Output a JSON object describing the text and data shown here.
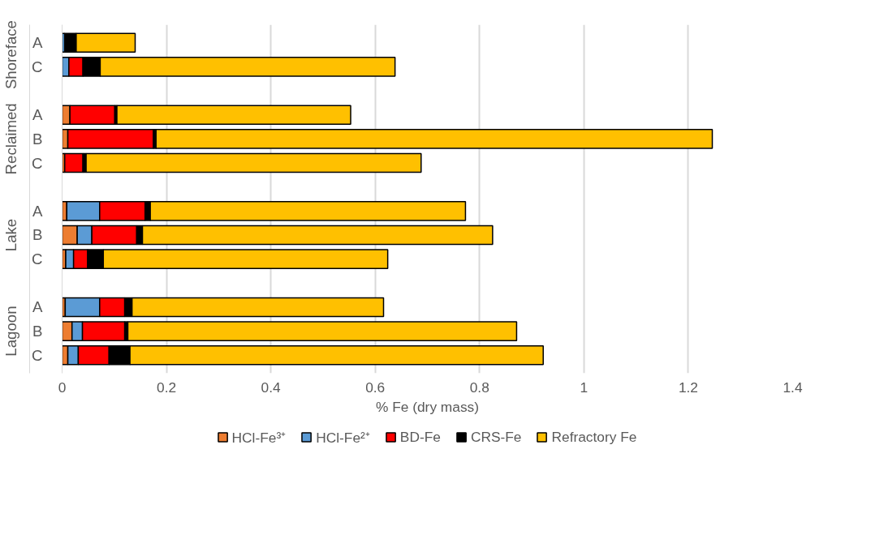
{
  "chart_data": {
    "type": "bar",
    "orientation": "horizontal",
    "stacked": true,
    "xlabel": "% Fe (dry mass)",
    "categories": [
      "A",
      "C",
      null,
      "A",
      "B",
      "C",
      null,
      "A",
      "B",
      "C",
      null,
      "A",
      "B",
      "C"
    ],
    "annotations": [
      "Shoreface",
      "Reclaimed",
      "Lake",
      "Lagoon"
    ],
    "series": [
      {
        "name": "HCl-Fe³⁺",
        "color": "#ed7d31",
        "values": [
          null,
          null,
          null,
          0.015,
          0.011,
          0.005,
          null,
          0.009,
          0.029,
          0.007,
          null,
          0.006,
          0.019,
          0.011
        ]
      },
      {
        "name": "HCl-Fe²⁺",
        "color": "#5b9bd5",
        "values": [
          0.005,
          0.013,
          null,
          null,
          null,
          null,
          null,
          0.063,
          0.028,
          0.015,
          null,
          0.066,
          0.02,
          0.02
        ]
      },
      {
        "name": "BD-Fe",
        "color": "#ff0000",
        "values": [
          null,
          0.027,
          null,
          0.086,
          0.164,
          0.035,
          null,
          0.087,
          0.086,
          0.027,
          null,
          0.048,
          0.081,
          0.059
        ]
      },
      {
        "name": "CRS-Fe",
        "color": "#000000",
        "values": [
          0.022,
          0.033,
          null,
          0.004,
          0.005,
          0.006,
          null,
          0.01,
          0.011,
          0.03,
          null,
          0.014,
          0.006,
          0.04
        ]
      },
      {
        "name": "Refractory Fe",
        "color": "#ffc000",
        "values": [
          0.113,
          0.565,
          null,
          0.448,
          1.066,
          0.642,
          null,
          0.604,
          0.671,
          0.545,
          null,
          0.482,
          0.745,
          0.792
        ]
      }
    ],
    "xlim": [
      0,
      1.4
    ],
    "xticks": [
      0,
      0.2,
      0.4,
      0.6,
      0.8,
      1,
      1.2,
      1.4
    ],
    "grid": "x",
    "legend": "bottom"
  }
}
